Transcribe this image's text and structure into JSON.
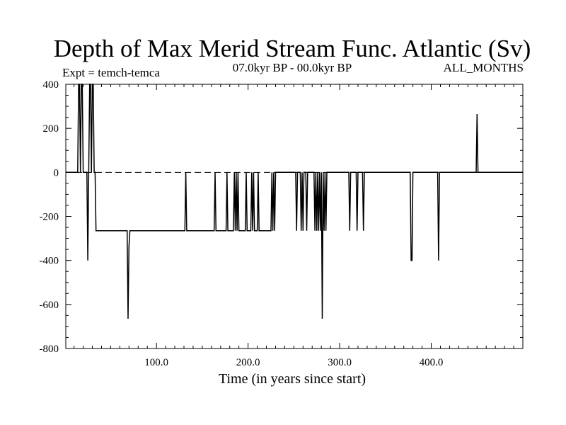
{
  "chart_data": {
    "type": "line",
    "title": "Depth of Max Merid Stream Func. Atlantic (Sv)",
    "subtitle_left": "Expt = temch-temca",
    "subtitle_center": "07.0kyr BP - 00.0kyr BP",
    "subtitle_right": "ALL_MONTHS",
    "xlabel": "Time (in years since start)",
    "ylabel": "",
    "xlim": [
      1,
      500
    ],
    "ylim": [
      -800,
      400
    ],
    "x_ticks": [
      100,
      200,
      300,
      400
    ],
    "x_tick_labels": [
      "100.0",
      "200.0",
      "300.0",
      "400.0"
    ],
    "y_ticks": [
      -800,
      -600,
      -400,
      -200,
      0,
      200,
      400
    ],
    "y_tick_labels": [
      "-800",
      "-600",
      "-400",
      "-200",
      "0",
      "200",
      "400"
    ],
    "zero_line": "dashed",
    "series": [
      {
        "values": [
          [
            1,
            0
          ],
          [
            14,
            0
          ],
          [
            15,
            400
          ],
          [
            16,
            400
          ],
          [
            17,
            0
          ],
          [
            18,
            400
          ],
          [
            19,
            400
          ],
          [
            20,
            0
          ],
          [
            24,
            0
          ],
          [
            25,
            -400
          ],
          [
            26,
            0
          ],
          [
            27,
            400
          ],
          [
            28,
            400
          ],
          [
            29,
            0
          ],
          [
            30,
            400
          ],
          [
            31,
            400
          ],
          [
            32,
            0
          ],
          [
            33,
            0
          ],
          [
            34,
            -265
          ],
          [
            68,
            -265
          ],
          [
            69,
            -665
          ],
          [
            70,
            -335
          ],
          [
            71,
            -265
          ],
          [
            131,
            -265
          ],
          [
            132,
            0
          ],
          [
            133,
            -265
          ],
          [
            163,
            -265
          ],
          [
            164,
            0
          ],
          [
            165,
            -265
          ],
          [
            176,
            -265
          ],
          [
            177,
            0
          ],
          [
            178,
            -265
          ],
          [
            184,
            -265
          ],
          [
            185,
            0
          ],
          [
            186,
            -265
          ],
          [
            187,
            0
          ],
          [
            188,
            -265
          ],
          [
            189,
            0
          ],
          [
            190,
            -265
          ],
          [
            197,
            -265
          ],
          [
            198,
            0
          ],
          [
            199,
            -265
          ],
          [
            203,
            -265
          ],
          [
            204,
            0
          ],
          [
            205,
            -265
          ],
          [
            206,
            0
          ],
          [
            207,
            -265
          ],
          [
            210,
            -265
          ],
          [
            211,
            0
          ],
          [
            212,
            -265
          ],
          [
            225,
            -265
          ],
          [
            226,
            0
          ],
          [
            227,
            -265
          ],
          [
            228,
            0
          ],
          [
            229,
            -265
          ],
          [
            230,
            0
          ],
          [
            252,
            0
          ],
          [
            253,
            -265
          ],
          [
            254,
            0
          ],
          [
            257,
            0
          ],
          [
            258,
            -265
          ],
          [
            259,
            0
          ],
          [
            260,
            -265
          ],
          [
            261,
            0
          ],
          [
            263,
            0
          ],
          [
            264,
            -265
          ],
          [
            265,
            0
          ],
          [
            272,
            0
          ],
          [
            273,
            -265
          ],
          [
            274,
            0
          ],
          [
            275,
            -265
          ],
          [
            276,
            0
          ],
          [
            277,
            -265
          ],
          [
            278,
            0
          ],
          [
            279,
            -265
          ],
          [
            280,
            0
          ],
          [
            281,
            -665
          ],
          [
            282,
            0
          ],
          [
            283,
            -265
          ],
          [
            284,
            0
          ],
          [
            285,
            -265
          ],
          [
            286,
            0
          ],
          [
            310,
            0
          ],
          [
            311,
            -265
          ],
          [
            312,
            0
          ],
          [
            318,
            0
          ],
          [
            319,
            -265
          ],
          [
            320,
            0
          ],
          [
            325,
            0
          ],
          [
            326,
            -265
          ],
          [
            327,
            0
          ],
          [
            377,
            0
          ],
          [
            378,
            -400
          ],
          [
            379,
            -400
          ],
          [
            380,
            0
          ],
          [
            407,
            0
          ],
          [
            408,
            -400
          ],
          [
            409,
            0
          ],
          [
            449,
            0
          ],
          [
            450,
            265
          ],
          [
            451,
            0
          ],
          [
            500,
            0
          ]
        ]
      }
    ]
  }
}
